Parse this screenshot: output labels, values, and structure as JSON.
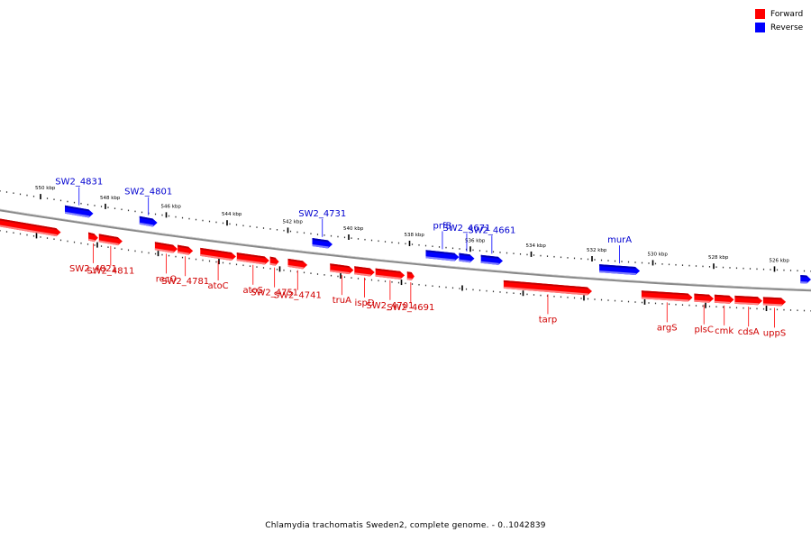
{
  "colors": {
    "forward": "#ff0000",
    "reverse": "#0000ff"
  },
  "legend": [
    {
      "label": "Forward",
      "strand": "forward"
    },
    {
      "label": "Reverse",
      "strand": "reverse"
    }
  ],
  "caption": "Chlamydia trachomatis Sweden2, complete genome. - 0..1042839",
  "ticks": [
    {
      "label": "550 kbp",
      "pos": 0.05
    },
    {
      "label": "548 kbp",
      "pos": 0.13
    },
    {
      "label": "546 kbp",
      "pos": 0.205
    },
    {
      "label": "544 kbp",
      "pos": 0.28
    },
    {
      "label": "542 kbp",
      "pos": 0.355
    },
    {
      "label": "540 kbp",
      "pos": 0.43
    },
    {
      "label": "538 kbp",
      "pos": 0.505
    },
    {
      "label": "536 kbp",
      "pos": 0.58
    },
    {
      "label": "534 kbp",
      "pos": 0.655
    },
    {
      "label": "532 kbp",
      "pos": 0.73
    },
    {
      "label": "530 kbp",
      "pos": 0.805
    },
    {
      "label": "528 kbp",
      "pos": 0.88
    },
    {
      "label": "526 kbp",
      "pos": 0.955
    }
  ],
  "genes": [
    {
      "name": "",
      "strand": "forward",
      "start": 0.0,
      "end": 0.075
    },
    {
      "name": "SW2_4831",
      "strand": "reverse",
      "start": 0.08,
      "end": 0.115
    },
    {
      "name": "SW2_4821",
      "strand": "forward",
      "start": 0.109,
      "end": 0.121
    },
    {
      "name": "SW2_4811",
      "strand": "forward",
      "start": 0.122,
      "end": 0.151
    },
    {
      "name": "SW2_4801",
      "strand": "reverse",
      "start": 0.172,
      "end": 0.194
    },
    {
      "name": "recO",
      "strand": "forward",
      "start": 0.191,
      "end": 0.219
    },
    {
      "name": "SW2_4781",
      "strand": "forward",
      "start": 0.219,
      "end": 0.238
    },
    {
      "name": "atoC",
      "strand": "forward",
      "start": 0.247,
      "end": 0.291
    },
    {
      "name": "atoS",
      "strand": "forward",
      "start": 0.292,
      "end": 0.332
    },
    {
      "name": "SW2_4751",
      "strand": "forward",
      "start": 0.333,
      "end": 0.344
    },
    {
      "name": "SW2_4741",
      "strand": "forward",
      "start": 0.355,
      "end": 0.379
    },
    {
      "name": "SW2_4731",
      "strand": "reverse",
      "start": 0.385,
      "end": 0.41
    },
    {
      "name": "truA",
      "strand": "forward",
      "start": 0.407,
      "end": 0.436
    },
    {
      "name": "ispD",
      "strand": "forward",
      "start": 0.437,
      "end": 0.462
    },
    {
      "name": "SW2_4701",
      "strand": "forward",
      "start": 0.463,
      "end": 0.499
    },
    {
      "name": "SW2_4691",
      "strand": "forward",
      "start": 0.502,
      "end": 0.511
    },
    {
      "name": "prfB",
      "strand": "reverse",
      "start": 0.525,
      "end": 0.566
    },
    {
      "name": "SW2_4671",
      "strand": "reverse",
      "start": 0.566,
      "end": 0.585
    },
    {
      "name": "SW2_4661",
      "strand": "reverse",
      "start": 0.593,
      "end": 0.62
    },
    {
      "name": "tarp",
      "strand": "forward",
      "start": 0.621,
      "end": 0.73
    },
    {
      "name": "murA",
      "strand": "reverse",
      "start": 0.739,
      "end": 0.789
    },
    {
      "name": "argS",
      "strand": "forward",
      "start": 0.791,
      "end": 0.854
    },
    {
      "name": "plsC",
      "strand": "forward",
      "start": 0.856,
      "end": 0.88
    },
    {
      "name": "cmk",
      "strand": "forward",
      "start": 0.881,
      "end": 0.905
    },
    {
      "name": "cdsA",
      "strand": "forward",
      "start": 0.906,
      "end": 0.94
    },
    {
      "name": "uppS",
      "strand": "forward",
      "start": 0.941,
      "end": 0.969
    },
    {
      "name": "",
      "strand": "reverse",
      "start": 0.987,
      "end": 1.0
    }
  ]
}
